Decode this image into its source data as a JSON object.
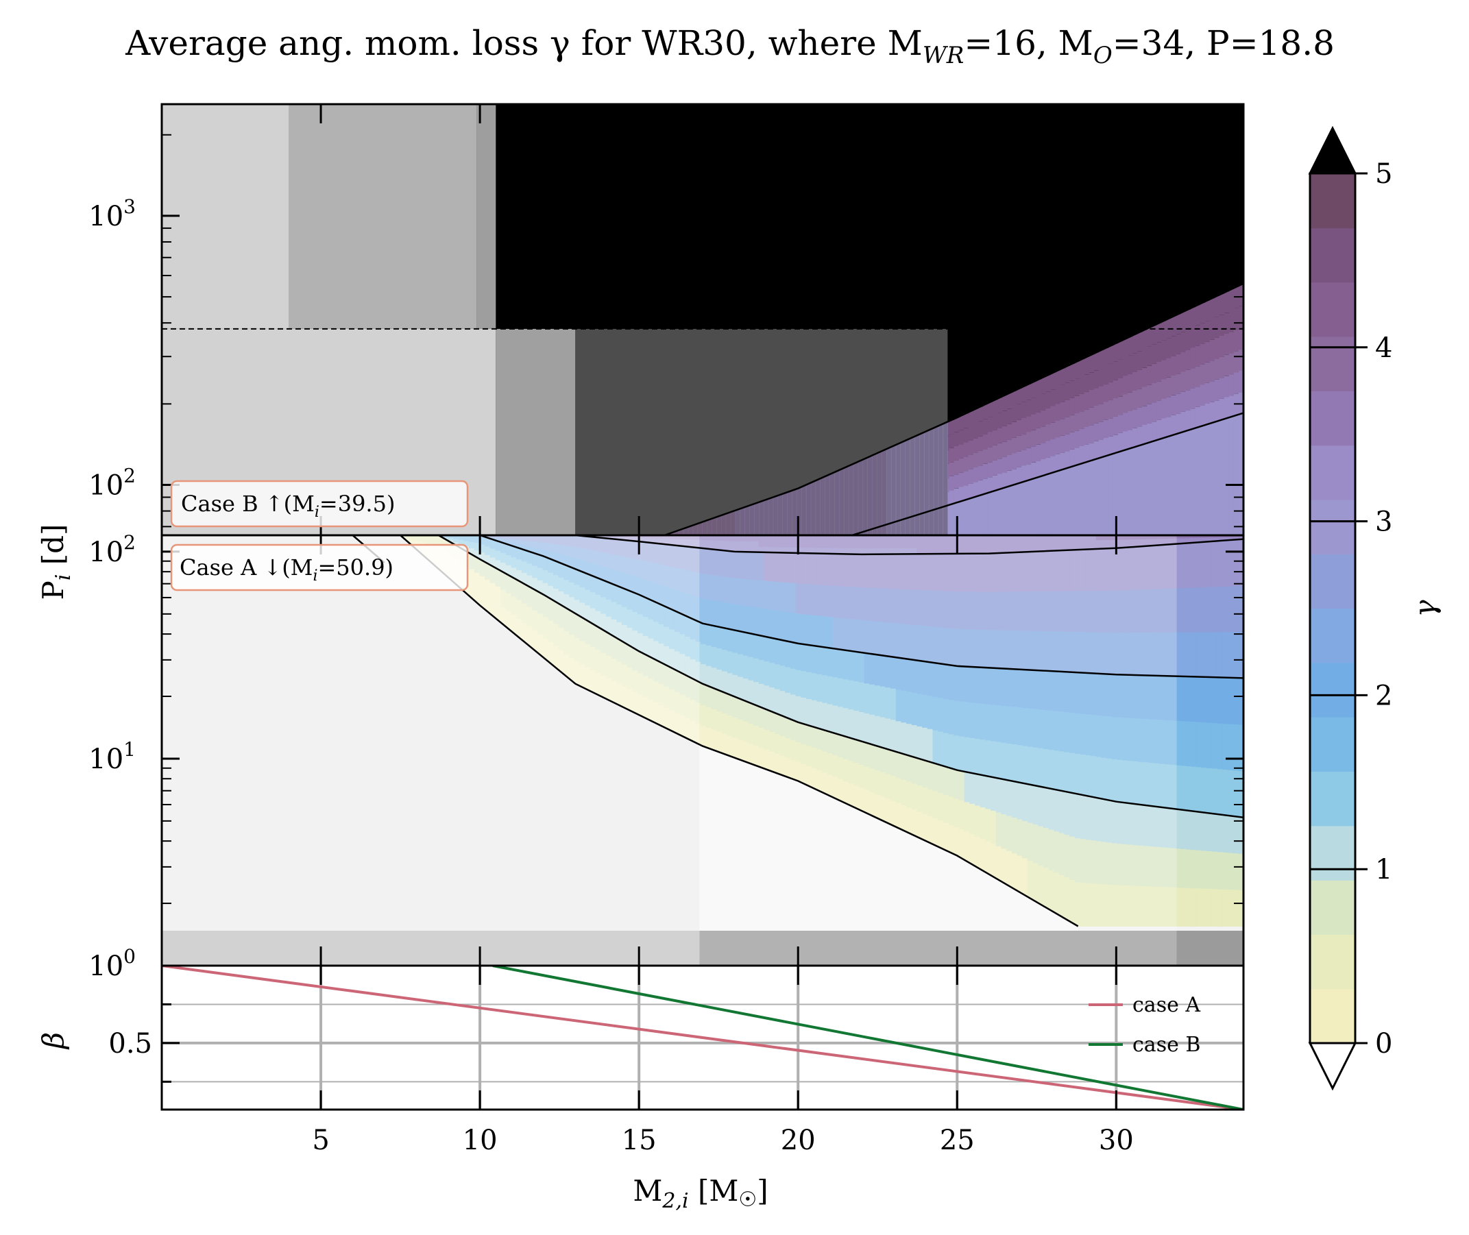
{
  "title": "Average ang. mom. loss γ for WR30, where M",
  "title_parts": {
    "main": "Average ang. mom. loss γ for WR30, where M",
    "sub_wr": "WR",
    "mid1": "=16, M",
    "sub_o": "O",
    "end": "=34, P=18.8"
  },
  "chart_data": [
    {
      "panel": "case-b",
      "type": "heatmap",
      "colorvar": "γ",
      "x_range": [
        0,
        34
      ],
      "ylim": [
        65,
        2600
      ],
      "yscale": "log",
      "y_ticks": [
        {
          "v": 100,
          "base": "10",
          "exp": "2"
        },
        {
          "v": 1000,
          "base": "10",
          "exp": "3"
        }
      ],
      "dashed_line_y": 380,
      "grey_regions": [
        {
          "x": [
            0,
            4
          ],
          "y": [
            380,
            2600
          ],
          "shade": "#d2d2d2"
        },
        {
          "x": [
            4,
            9.9
          ],
          "y": [
            380,
            2600
          ],
          "shade": "#b2b2b2"
        },
        {
          "x": [
            9.9,
            10.5
          ],
          "y": [
            380,
            2600
          ],
          "shade": "#9e9e9e"
        },
        {
          "x": [
            0,
            10.5
          ],
          "y": [
            65,
            380
          ],
          "shade": "#d2d2d2"
        },
        {
          "x": [
            10.5,
            13
          ],
          "y": [
            65,
            380
          ],
          "shade": "#a0a0a0"
        },
        {
          "x": [
            13,
            24.7
          ],
          "y": [
            65,
            380
          ],
          "shade": "#4d4d4d"
        }
      ],
      "black_region_from_x": 10.5,
      "gamma_contours": [
        {
          "level": 3,
          "points": [
            [
              21.7,
              65
            ],
            [
              34,
              185
            ]
          ]
        },
        {
          "level": 4,
          "points": [
            [
              15.8,
              65
            ],
            [
              20,
              97
            ],
            [
              25,
              178
            ],
            [
              34,
              560
            ]
          ]
        }
      ],
      "annotation": {
        "text": "Case B ↑(M",
        "sub": "i",
        "tail": "=39.5)"
      }
    },
    {
      "panel": "case-a",
      "type": "heatmap",
      "colorvar": "γ",
      "x_range": [
        0,
        34
      ],
      "ylim": [
        1,
        120
      ],
      "yscale": "log",
      "y_ticks": [
        {
          "v": 1,
          "base": "10",
          "exp": "0"
        },
        {
          "v": 10,
          "base": "10",
          "exp": "1"
        },
        {
          "v": 100,
          "base": "10",
          "exp": "2"
        }
      ],
      "ylabel": "P",
      "ylabel_sub": "i",
      "ylabel_unit": " [d]",
      "gamma_contours": [
        {
          "level": 0,
          "points": [
            [
              7.5,
              120
            ],
            [
              10,
              55
            ],
            [
              13,
              23
            ],
            [
              17,
              11.5
            ],
            [
              20,
              7.8
            ],
            [
              25,
              3.4
            ],
            [
              28.8,
              1.55
            ]
          ]
        },
        {
          "level": 1,
          "points": [
            [
              8.7,
              120
            ],
            [
              10,
              92
            ],
            [
              12,
              62
            ],
            [
              15,
              33
            ],
            [
              17,
              23
            ],
            [
              20,
              15
            ],
            [
              25,
              8.8
            ],
            [
              30,
              6.2
            ],
            [
              34,
              5.2
            ]
          ]
        },
        {
          "level": 2,
          "points": [
            [
              10,
              120
            ],
            [
              12,
              95
            ],
            [
              15,
              62
            ],
            [
              17,
              45
            ],
            [
              20,
              36
            ],
            [
              25,
              28
            ],
            [
              30,
              25.5
            ],
            [
              34,
              24.5
            ]
          ]
        },
        {
          "level": 3,
          "points": [
            [
              13,
              120
            ],
            [
              15,
              112
            ],
            [
              18,
              100
            ],
            [
              22,
              97
            ],
            [
              26,
              98
            ],
            [
              30,
              104
            ],
            [
              34,
              115
            ]
          ]
        }
      ],
      "annotation": {
        "text": "Case A ↓(M",
        "sub": "i",
        "tail": "=50.9)"
      }
    },
    {
      "panel": "beta",
      "type": "line",
      "xlabel": "M",
      "xlabel_sub": "2,i",
      "xlabel_unit": " [M",
      "xlabel_tail": "]",
      "ylabel": "β",
      "x_range": [
        0,
        34
      ],
      "ylim": [
        0.07,
        1.0
      ],
      "x_ticks": [
        5,
        10,
        15,
        20,
        25,
        30
      ],
      "y_ticks": [
        0.5
      ],
      "legend_position": "right",
      "series": [
        {
          "name": "case A",
          "color": "#cc6677",
          "x": [
            0,
            34
          ],
          "y": [
            1.0,
            0.07
          ]
        },
        {
          "name": "case B",
          "color": "#117733",
          "x": [
            10.4,
            34
          ],
          "y": [
            1.0,
            0.07
          ]
        }
      ]
    }
  ],
  "colorbar": {
    "label": "γ",
    "ticks": [
      "0",
      "1",
      "2",
      "3",
      "4",
      "5"
    ],
    "levels": [
      0,
      5
    ],
    "palette": [
      "#f2eec0",
      "#e7ebbd",
      "#d8e6c4",
      "#b9dae0",
      "#8ecae6",
      "#79bae6",
      "#72aee5",
      "#82a9e2",
      "#8e9ed8",
      "#9d97cf",
      "#9b8bc6",
      "#9279b3",
      "#8c6c9f",
      "#855f90",
      "#7a5480",
      "#6e4a66"
    ],
    "over_color": "#000000",
    "under_color": "#ffffff"
  }
}
